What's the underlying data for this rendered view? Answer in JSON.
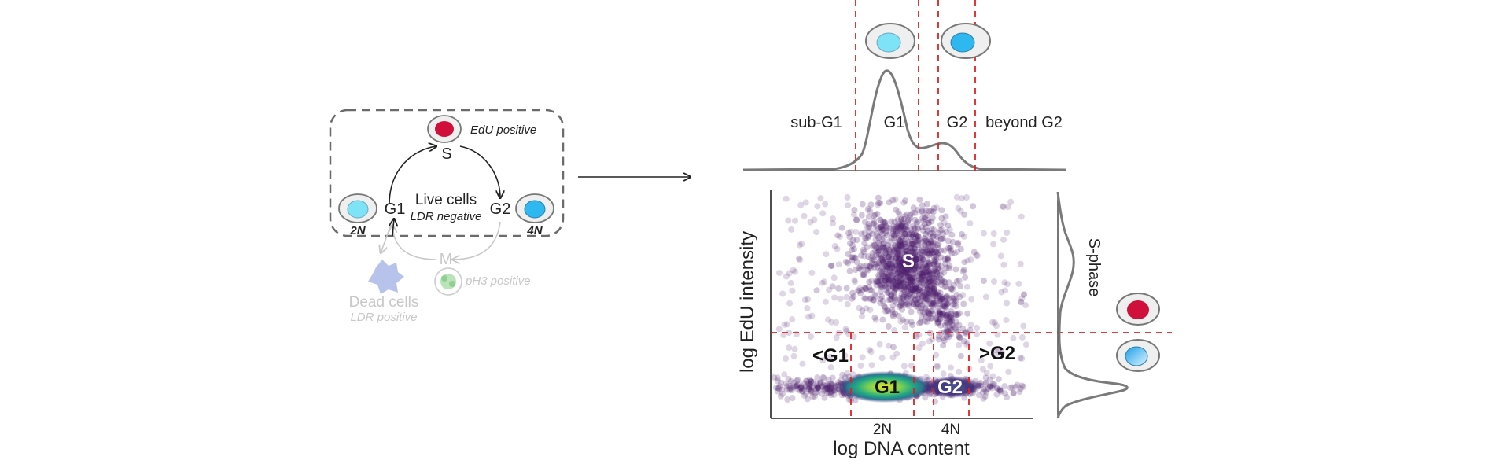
{
  "colors": {
    "edu_positive": "#d0103a",
    "g1_nucleus": "#7fe3f7",
    "g2_nucleus": "#2fb7f0",
    "cell_body": "#efefef",
    "cell_border": "#777777",
    "gate_line": "#e02020",
    "density_curve": "#7a7a7a",
    "scatter_point": "#4a1a6b",
    "faded": "#c8c8c8",
    "dead_cell": "#aab8e8",
    "ph3_cell": "#a9dca9"
  },
  "cycle": {
    "edu_label": "EdU positive",
    "s_label": "S",
    "g1_label": "G1",
    "g2_label": "G2",
    "m_label": "M",
    "live_title": "Live cells",
    "live_subtitle": "LDR negative",
    "ploidy_2n": "2N",
    "ploidy_4n": "4N",
    "dead_title": "Dead cells",
    "dead_subtitle": "LDR positive",
    "ph3_label": "pH3 positive"
  },
  "histogram": {
    "regions": [
      "sub-G1",
      "G1",
      "G2",
      "beyond G2"
    ]
  },
  "scatter": {
    "xlabel": "log DNA content",
    "ylabel": "log EdU intensity",
    "x_ticks": [
      "2N",
      "4N"
    ],
    "gate_labels": {
      "below_g1": "<G1",
      "g1": "G1",
      "g2": "G2",
      "above_g2": ">G2",
      "s": "S"
    }
  },
  "side_histogram": {
    "label": "S-phase"
  }
}
